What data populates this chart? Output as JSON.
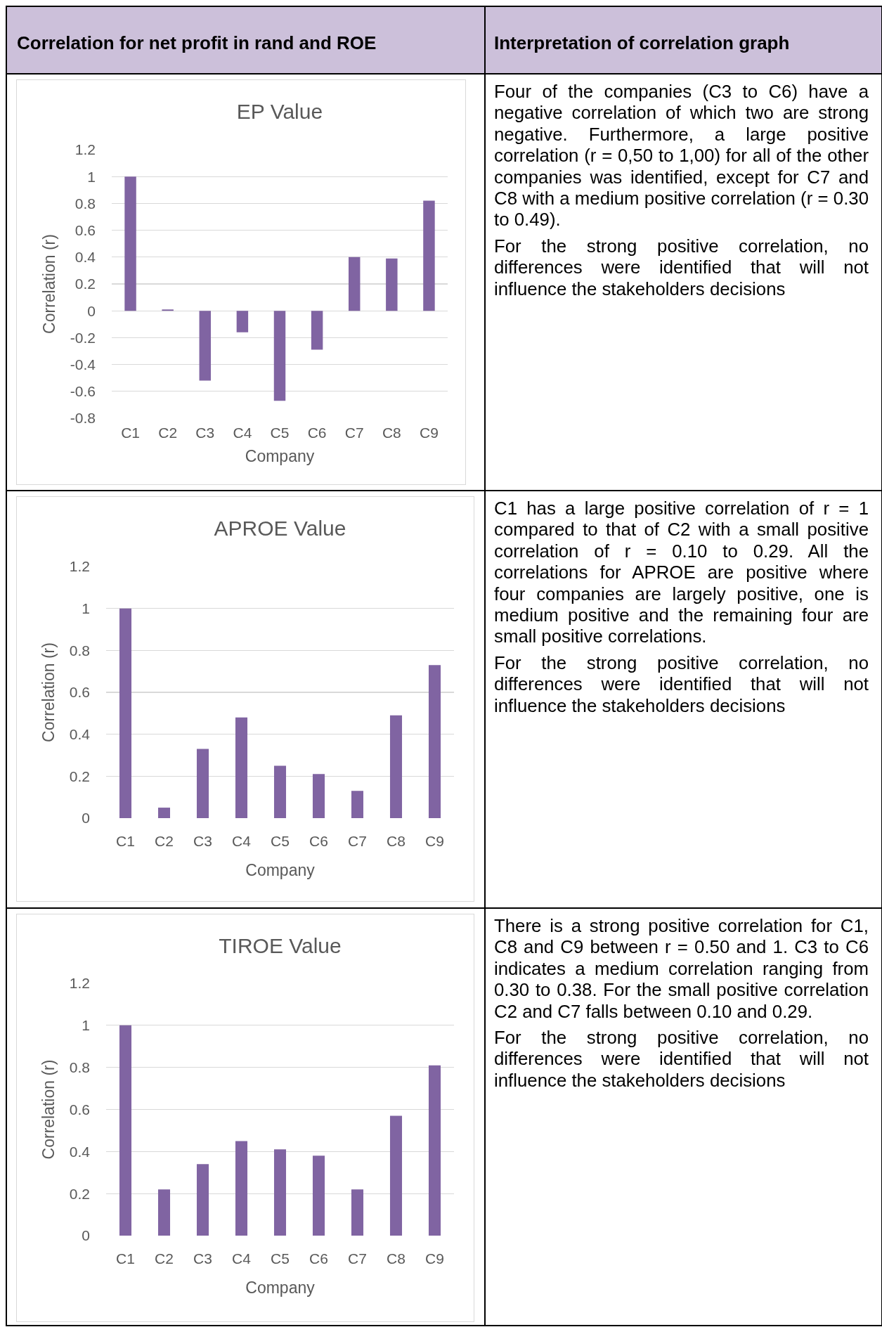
{
  "chart_data": [
    {
      "type": "other",
      "annotations": [
        "Correlation for net profit in rand and ROE",
        "Interpretation of correlation graph"
      ]
    },
    {
      "type": "bar",
      "title": "EP Value",
      "xlabel": "Company",
      "ylabel": "Correlation (r)",
      "categories": [
        "C1",
        "C2",
        "C3",
        "C4",
        "C5",
        "C6",
        "C7",
        "C8",
        "C9"
      ],
      "values": [
        1,
        0.01,
        -0.52,
        -0.16,
        -0.67,
        -0.29,
        0.4,
        0.39,
        0.82
      ],
      "color": "#8064a2",
      "ylim": [
        -0.8,
        1.2
      ],
      "yticks": [
        -0.8,
        -0.6,
        -0.4,
        -0.2,
        0,
        0.2,
        0.4,
        0.6,
        0.8,
        1,
        1.2
      ],
      "grid": "y"
    },
    {
      "type": "other",
      "annotations": [
        "Four of the companies (C3 to C6) have a negative correlation of which two are strong negative. Furthermore, a large positive correlation (r = 0,50 to 1,00) for all of the other companies was identified, except for C7 and C8 with a medium positive correlation (r = 0.30 to 0.49).",
        "For the strong positive correlation, no differences were identified that will not influence the stakeholders decisions"
      ]
    },
    {
      "type": "bar",
      "title": "APROE Value",
      "xlabel": "Company",
      "ylabel": "Correlation (r)",
      "categories": [
        "C1",
        "C2",
        "C3",
        "C4",
        "C5",
        "C6",
        "C7",
        "C8",
        "C9"
      ],
      "values": [
        1,
        0.05,
        0.33,
        0.48,
        0.25,
        0.21,
        0.13,
        0.49,
        0.73
      ],
      "color": "#8064a2",
      "ylim": [
        0,
        1.2
      ],
      "yticks": [
        0,
        0.2,
        0.4,
        0.6,
        0.8,
        1,
        1.2
      ],
      "grid": "y"
    },
    {
      "type": "other",
      "annotations": [
        "C1 has a large positive correlation of r = 1 compared to that of C2 with a small positive correlation of r = 0.10 to 0.29. All the correlations for APROE are positive where four companies are largely positive, one is medium positive and the remaining four are small positive correlations.",
        "For the strong positive correlation, no differences were identified that will not influence the stakeholders decisions"
      ]
    },
    {
      "type": "bar",
      "title": "TIROE Value",
      "xlabel": "Company",
      "ylabel": "Correlation (r)",
      "categories": [
        "C1",
        "C2",
        "C3",
        "C4",
        "C5",
        "C6",
        "C7",
        "C8",
        "C9"
      ],
      "values": [
        1,
        0.22,
        0.34,
        0.45,
        0.41,
        0.38,
        0.22,
        0.57,
        0.81
      ],
      "color": "#8064a2",
      "ylim": [
        0,
        1.2
      ],
      "yticks": [
        0,
        0.2,
        0.4,
        0.6,
        0.8,
        1,
        1.2
      ],
      "grid": "y"
    },
    {
      "type": "other",
      "annotations": [
        "There is a strong positive correlation for C1, C8 and C9 between r = 0.50 and 1. C3 to C6 indicates a medium correlation ranging from 0.30 to 0.38. For the small positive correlation C2 and C7 falls between 0.10 and 0.29.",
        "For the strong positive correlation, no differences were identified that will not influence the stakeholders decisions"
      ]
    }
  ]
}
